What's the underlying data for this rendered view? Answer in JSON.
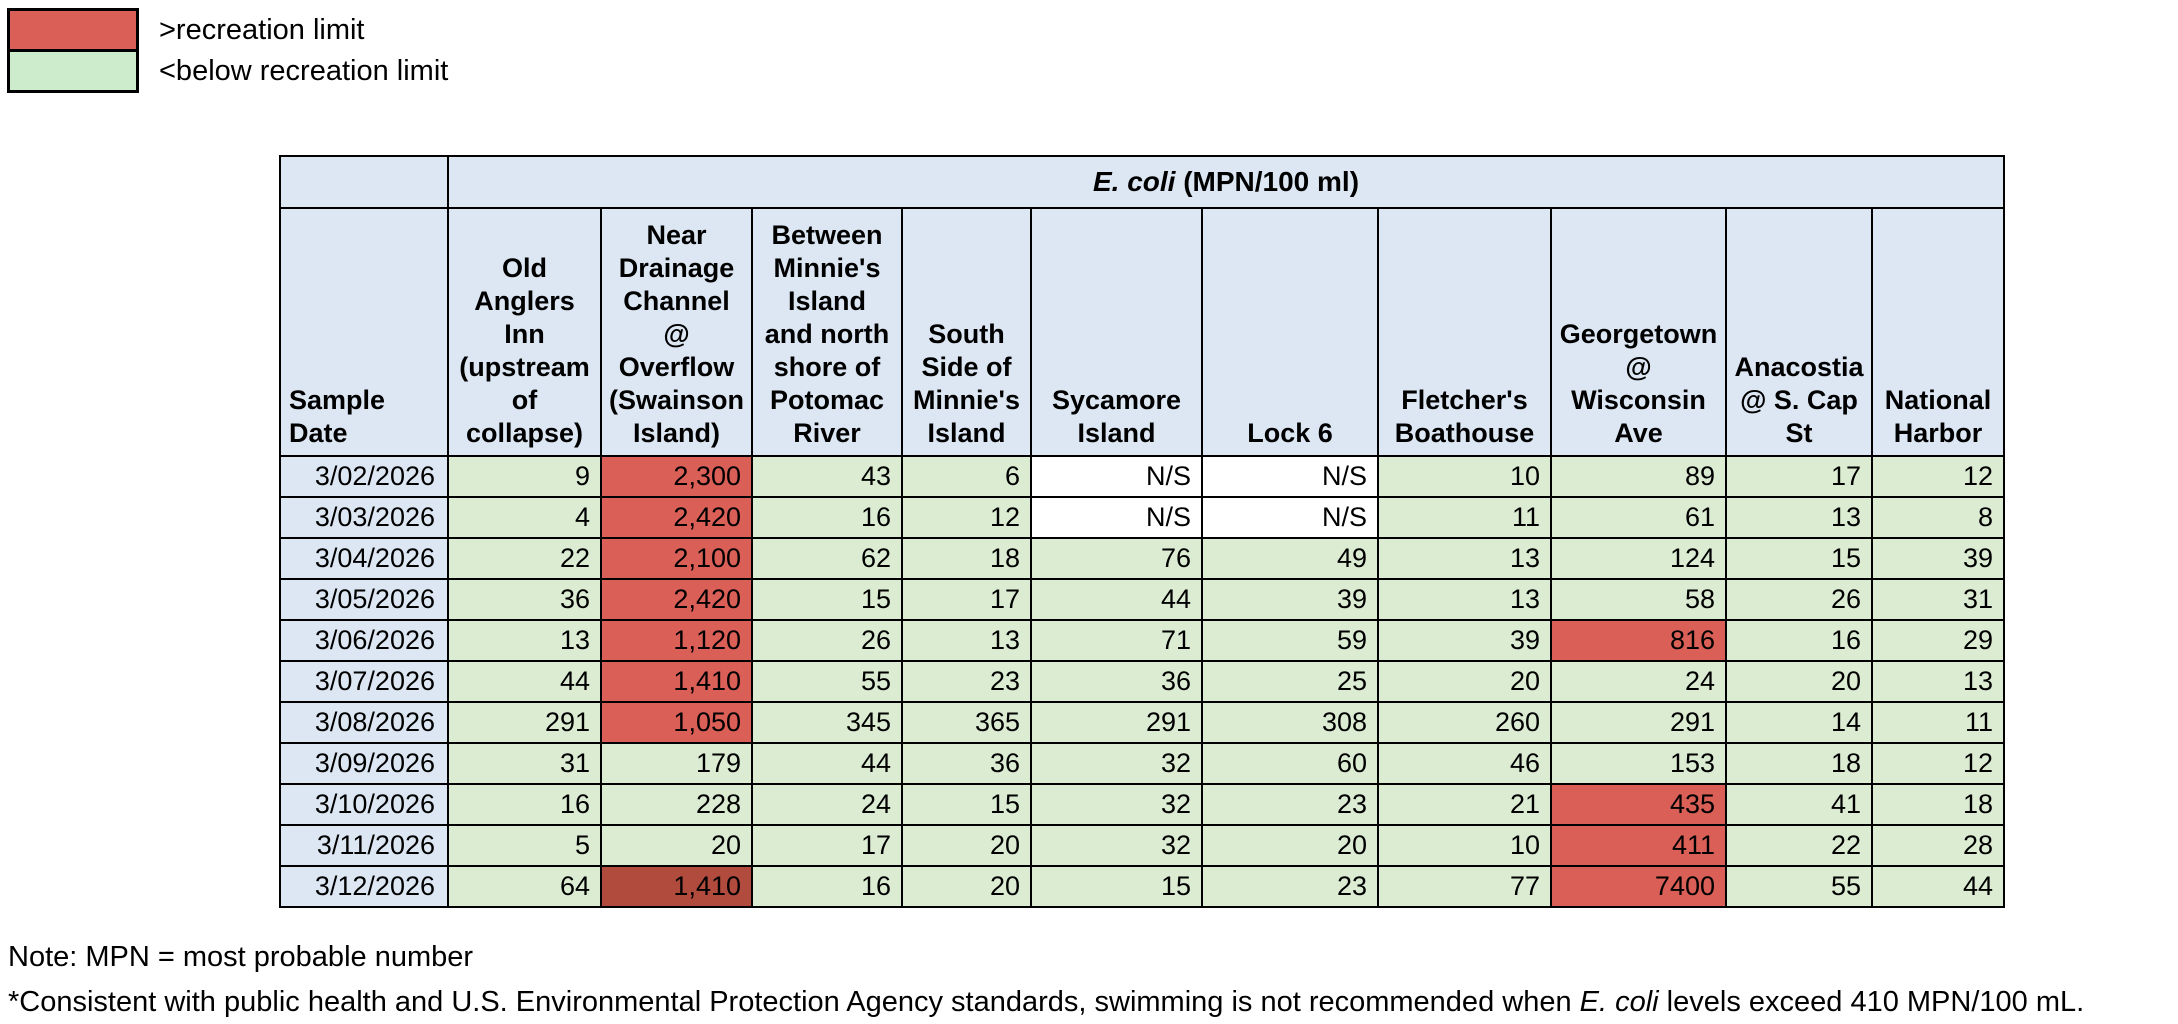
{
  "colors": {
    "exceed": "#d95f57",
    "exceed_dark": "#b04b3e",
    "below": "#dbecd3",
    "below_legend": "#cdeccb",
    "ns": "#ffffff",
    "header_bg": "#dce7f3",
    "border": "#000000"
  },
  "legend": {
    "items": [
      {
        "label": ">recreation limit",
        "status": "exceed"
      },
      {
        "label": "<below recreation limit",
        "status": "below_legend"
      }
    ]
  },
  "chart_data": {
    "type": "table",
    "title": {
      "italic": "E. coli",
      "rest": " (MPN/100 ml)"
    },
    "corner_header": "Sample\nDate",
    "columns": [
      "Old\nAnglers\nInn\n(upstream\nof\ncollapse)",
      "Near\nDrainage\nChannel\n@\nOverflow\n(Swainson\nIsland)",
      "Between\nMinnie's\nIsland\nand north\nshore of\nPotomac\nRiver",
      "South\nSide of\nMinnie's\nIsland",
      "Sycamore\nIsland",
      "Lock 6",
      "Fletcher's\nBoathouse",
      "Georgetown\n@\nWisconsin\nAve",
      "Anacostia\n@ S. Cap\nSt",
      "National\nHarbor"
    ],
    "rows": [
      {
        "date": "3/02/2026",
        "values": [
          "9",
          "2,300",
          "43",
          "6",
          "N/S",
          "N/S",
          "10",
          "89",
          "17",
          "12"
        ],
        "status": [
          "below",
          "exceed",
          "below",
          "below",
          "ns",
          "ns",
          "below",
          "below",
          "below",
          "below"
        ]
      },
      {
        "date": "3/03/2026",
        "values": [
          "4",
          "2,420",
          "16",
          "12",
          "N/S",
          "N/S",
          "11",
          "61",
          "13",
          "8"
        ],
        "status": [
          "below",
          "exceed",
          "below",
          "below",
          "ns",
          "ns",
          "below",
          "below",
          "below",
          "below"
        ]
      },
      {
        "date": "3/04/2026",
        "values": [
          "22",
          "2,100",
          "62",
          "18",
          "76",
          "49",
          "13",
          "124",
          "15",
          "39"
        ],
        "status": [
          "below",
          "exceed",
          "below",
          "below",
          "below",
          "below",
          "below",
          "below",
          "below",
          "below"
        ]
      },
      {
        "date": "3/05/2026",
        "values": [
          "36",
          "2,420",
          "15",
          "17",
          "44",
          "39",
          "13",
          "58",
          "26",
          "31"
        ],
        "status": [
          "below",
          "exceed",
          "below",
          "below",
          "below",
          "below",
          "below",
          "below",
          "below",
          "below"
        ]
      },
      {
        "date": "3/06/2026",
        "values": [
          "13",
          "1,120",
          "26",
          "13",
          "71",
          "59",
          "39",
          "816",
          "16",
          "29"
        ],
        "status": [
          "below",
          "exceed",
          "below",
          "below",
          "below",
          "below",
          "below",
          "exceed",
          "below",
          "below"
        ]
      },
      {
        "date": "3/07/2026",
        "values": [
          "44",
          "1,410",
          "55",
          "23",
          "36",
          "25",
          "20",
          "24",
          "20",
          "13"
        ],
        "status": [
          "below",
          "exceed",
          "below",
          "below",
          "below",
          "below",
          "below",
          "below",
          "below",
          "below"
        ]
      },
      {
        "date": "3/08/2026",
        "values": [
          "291",
          "1,050",
          "345",
          "365",
          "291",
          "308",
          "260",
          "291",
          "14",
          "11"
        ],
        "status": [
          "below",
          "exceed",
          "below",
          "below",
          "below",
          "below",
          "below",
          "below",
          "below",
          "below"
        ]
      },
      {
        "date": "3/09/2026",
        "values": [
          "31",
          "179",
          "44",
          "36",
          "32",
          "60",
          "46",
          "153",
          "18",
          "12"
        ],
        "status": [
          "below",
          "below",
          "below",
          "below",
          "below",
          "below",
          "below",
          "below",
          "below",
          "below"
        ]
      },
      {
        "date": "3/10/2026",
        "values": [
          "16",
          "228",
          "24",
          "15",
          "32",
          "23",
          "21",
          "435",
          "41",
          "18"
        ],
        "status": [
          "below",
          "below",
          "below",
          "below",
          "below",
          "below",
          "below",
          "exceed",
          "below",
          "below"
        ]
      },
      {
        "date": "3/11/2026",
        "values": [
          "5",
          "20",
          "17",
          "20",
          "32",
          "20",
          "10",
          "411",
          "22",
          "28"
        ],
        "status": [
          "below",
          "below",
          "below",
          "below",
          "below",
          "below",
          "below",
          "exceed",
          "below",
          "below"
        ]
      },
      {
        "date": "3/12/2026",
        "values": [
          "64",
          "1,410",
          "16",
          "20",
          "15",
          "23",
          "77",
          "7400",
          "55",
          "44"
        ],
        "status": [
          "below",
          "exceed_dark",
          "below",
          "below",
          "below",
          "below",
          "below",
          "exceed",
          "below",
          "below"
        ]
      }
    ]
  },
  "notes": {
    "line1": "Note: MPN = most probable number",
    "line2_pre": "*Consistent with public health and U.S. Environmental Protection Agency standards, swimming is not recommended when ",
    "line2_italic": "E. coli",
    "line2_post": " levels exceed 410 MPN/100 mL."
  }
}
